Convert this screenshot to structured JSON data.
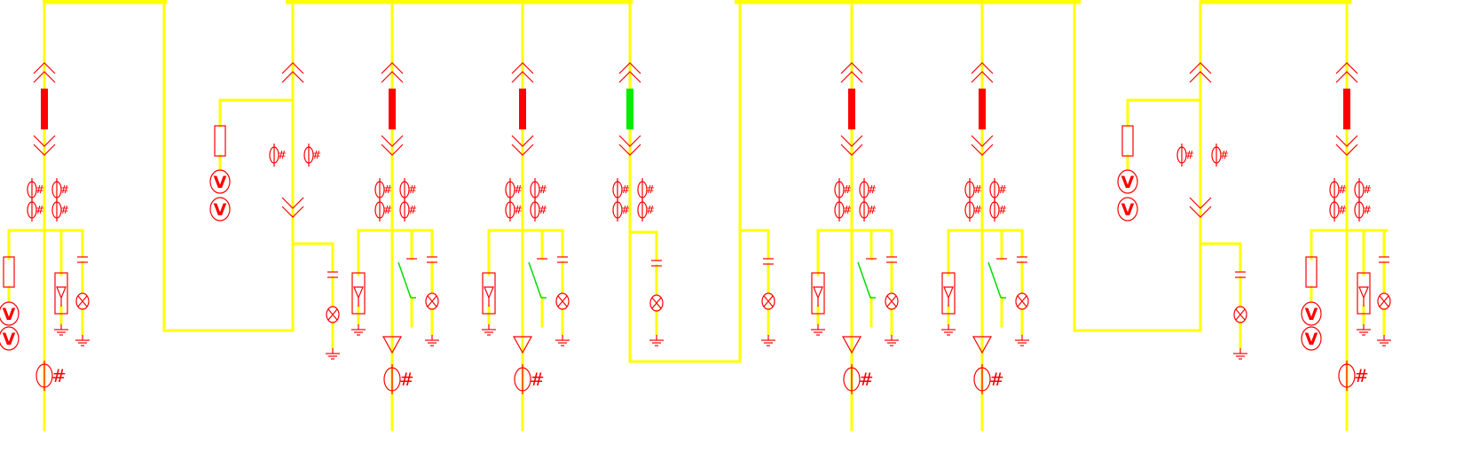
{
  "diagram": {
    "type": "switchgear-single-line",
    "colors": {
      "background": "#ffffff",
      "busbar": "#ffff00",
      "symbol": "#ff0000",
      "breaker_closed": "#ff0000",
      "breaker_open": "#00ee00",
      "earth_switch": "#00dd00"
    },
    "symbol_glyphs": {
      "voltmeter": "V",
      "ct_mark": "#"
    },
    "bus_sections": 4,
    "panels": [
      {
        "id": "p1",
        "kind": "incoming-pt",
        "breaker": "closed"
      },
      {
        "id": "p2",
        "kind": "bus-riser",
        "breaker": null
      },
      {
        "id": "p3",
        "kind": "feeder",
        "breaker": "closed"
      },
      {
        "id": "p4",
        "kind": "feeder",
        "breaker": "closed"
      },
      {
        "id": "p5",
        "kind": "bus-tie",
        "breaker": "open"
      },
      {
        "id": "p6",
        "kind": "feeder",
        "breaker": "closed"
      },
      {
        "id": "p7",
        "kind": "feeder",
        "breaker": "closed"
      },
      {
        "id": "p8",
        "kind": "bus-riser",
        "breaker": null
      },
      {
        "id": "p9",
        "kind": "incoming-pt",
        "breaker": "closed"
      }
    ]
  }
}
